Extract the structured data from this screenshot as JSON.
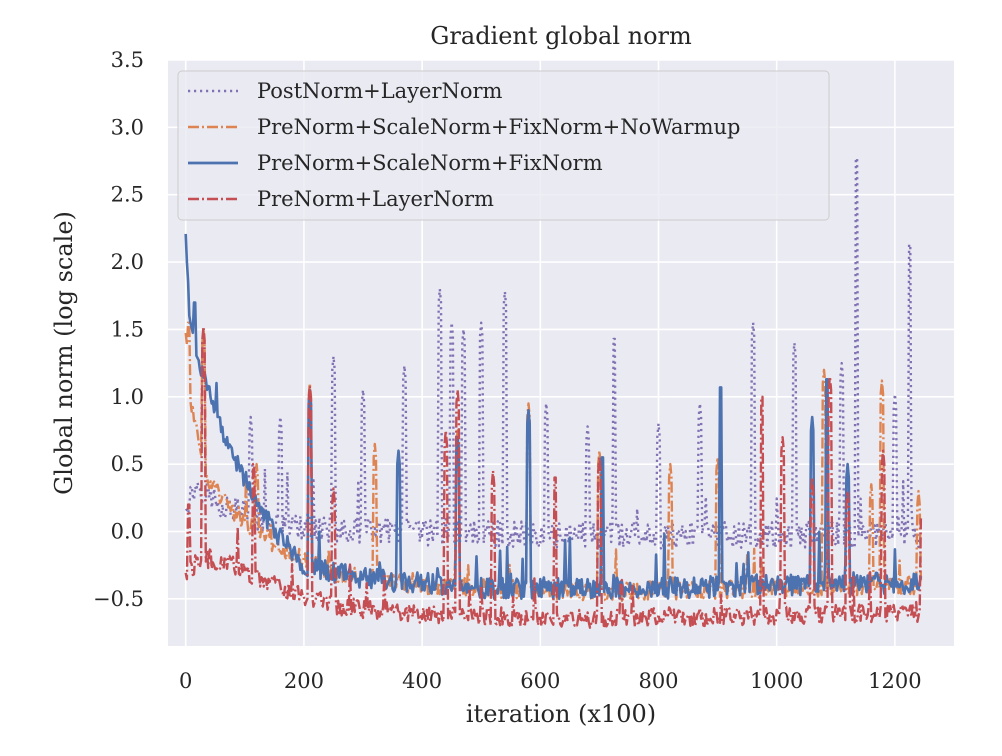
{
  "chart_data": {
    "type": "line",
    "title": "Gradient global norm",
    "xlabel": "iteration (x100)",
    "ylabel": "Global norm (log scale)",
    "xlim": [
      -30,
      1300
    ],
    "ylim": [
      -0.85,
      3.5
    ],
    "xticks": [
      0,
      200,
      400,
      600,
      800,
      1000,
      1200
    ],
    "xtick_labels": [
      "0",
      "200",
      "400",
      "600",
      "800",
      "1000",
      "1200"
    ],
    "yticks": [
      -0.5,
      0.0,
      0.5,
      1.0,
      1.5,
      2.0,
      2.5,
      3.0,
      3.5
    ],
    "ytick_labels": [
      "−0.5",
      "0.0",
      "0.5",
      "1.0",
      "1.5",
      "2.0",
      "2.5",
      "3.0",
      "3.5"
    ],
    "grid": true,
    "legend_position": "top-left",
    "x_end": 1245,
    "series": [
      {
        "name": "PostNorm+LayerNorm",
        "color": "#8172b3",
        "style": "dotted",
        "baseline": [
          [
            0,
            0.2
          ],
          [
            20,
            0.35
          ],
          [
            60,
            0.2
          ],
          [
            150,
            0.05
          ],
          [
            300,
            0.0
          ],
          [
            600,
            -0.02
          ],
          [
            900,
            -0.03
          ],
          [
            1245,
            -0.02
          ]
        ],
        "noise": 0.1,
        "spikes": [
          [
            110,
            0.85
          ],
          [
            160,
            0.85
          ],
          [
            250,
            1.3
          ],
          [
            300,
            1.05
          ],
          [
            370,
            1.23
          ],
          [
            430,
            1.8
          ],
          [
            450,
            1.55
          ],
          [
            470,
            1.5
          ],
          [
            500,
            1.55
          ],
          [
            540,
            1.78
          ],
          [
            610,
            0.95
          ],
          [
            680,
            0.78
          ],
          [
            725,
            1.48
          ],
          [
            800,
            0.8
          ],
          [
            870,
            0.95
          ],
          [
            960,
            1.55
          ],
          [
            1030,
            1.4
          ],
          [
            1110,
            1.25
          ],
          [
            1135,
            2.82
          ],
          [
            1200,
            1.02
          ],
          [
            1225,
            2.18
          ]
        ]
      },
      {
        "name": "PreNorm+ScaleNorm+FixNorm+NoWarmup",
        "color": "#dd8452",
        "style": "dashdot",
        "baseline": [
          [
            0,
            1.45
          ],
          [
            10,
            0.9
          ],
          [
            40,
            0.35
          ],
          [
            80,
            0.15
          ],
          [
            150,
            -0.1
          ],
          [
            250,
            -0.3
          ],
          [
            400,
            -0.4
          ],
          [
            700,
            -0.45
          ],
          [
            1000,
            -0.42
          ],
          [
            1245,
            -0.4
          ]
        ],
        "noise": 0.07,
        "spikes": [
          [
            5,
            1.6
          ],
          [
            30,
            1.5
          ],
          [
            120,
            0.5
          ],
          [
            210,
            1.1
          ],
          [
            320,
            0.65
          ],
          [
            460,
            0.75
          ],
          [
            580,
            0.95
          ],
          [
            700,
            0.6
          ],
          [
            820,
            0.5
          ],
          [
            900,
            0.55
          ],
          [
            1080,
            1.2
          ],
          [
            1160,
            0.35
          ],
          [
            1178,
            1.12
          ],
          [
            1240,
            0.3
          ]
        ]
      },
      {
        "name": "PreNorm+ScaleNorm+FixNorm",
        "color": "#4c72b0",
        "style": "solid",
        "baseline": [
          [
            0,
            2.28
          ],
          [
            5,
            1.6
          ],
          [
            20,
            1.3
          ],
          [
            50,
            0.9
          ],
          [
            80,
            0.55
          ],
          [
            150,
            0.0
          ],
          [
            200,
            -0.25
          ],
          [
            300,
            -0.35
          ],
          [
            500,
            -0.42
          ],
          [
            800,
            -0.42
          ],
          [
            1245,
            -0.38
          ]
        ],
        "noise": 0.08,
        "spikes": [
          [
            15,
            1.75
          ],
          [
            45,
            1.0
          ],
          [
            70,
            0.7
          ],
          [
            210,
            1.05
          ],
          [
            360,
            0.6
          ],
          [
            460,
            0.7
          ],
          [
            580,
            0.9
          ],
          [
            705,
            0.6
          ],
          [
            905,
            1.12
          ],
          [
            1060,
            0.85
          ],
          [
            1085,
            1.18
          ],
          [
            1120,
            0.5
          ]
        ]
      },
      {
        "name": "PreNorm+LayerNorm",
        "color": "#c44e52",
        "style": "dashdot",
        "baseline": [
          [
            0,
            -0.3
          ],
          [
            30,
            -0.2
          ],
          [
            80,
            -0.25
          ],
          [
            150,
            -0.4
          ],
          [
            250,
            -0.55
          ],
          [
            400,
            -0.62
          ],
          [
            700,
            -0.65
          ],
          [
            1000,
            -0.62
          ],
          [
            1245,
            -0.6
          ]
        ],
        "noise": 0.07,
        "spikes": [
          [
            5,
            0.25
          ],
          [
            30,
            1.52
          ],
          [
            115,
            0.55
          ],
          [
            210,
            1.08
          ],
          [
            250,
            0.32
          ],
          [
            440,
            0.75
          ],
          [
            460,
            1.05
          ],
          [
            520,
            0.45
          ],
          [
            625,
            0.45
          ],
          [
            700,
            0.55
          ],
          [
            975,
            1.05
          ],
          [
            1010,
            0.7
          ],
          [
            1060,
            0.4
          ],
          [
            1090,
            1.15
          ],
          [
            1120,
            0.3
          ],
          [
            1180,
            0.6
          ],
          [
            1245,
            0.15
          ]
        ]
      }
    ]
  }
}
